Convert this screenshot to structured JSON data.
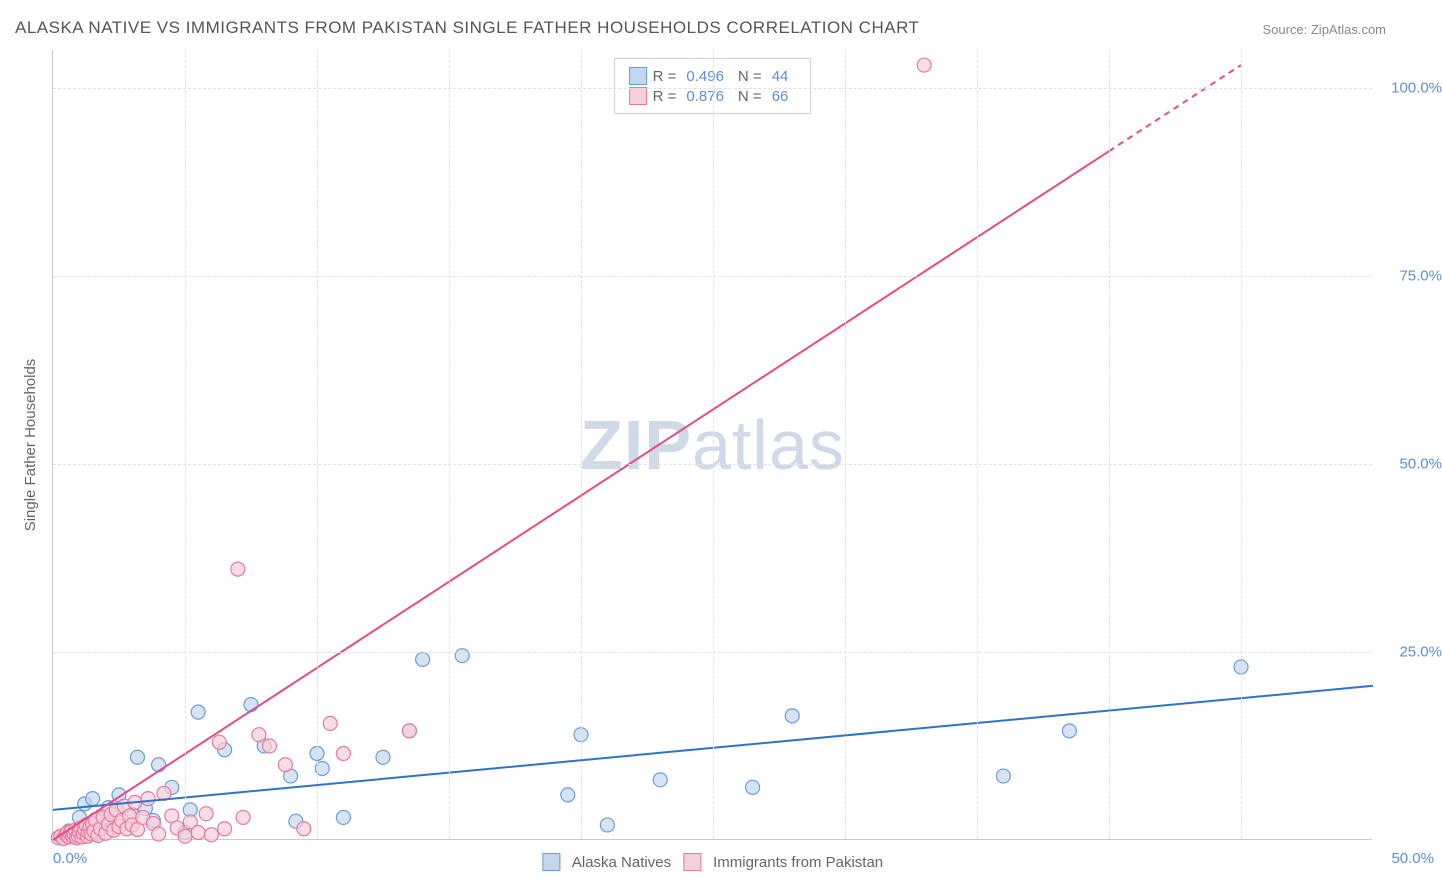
{
  "title": "ALASKA NATIVE VS IMMIGRANTS FROM PAKISTAN SINGLE FATHER HOUSEHOLDS CORRELATION CHART",
  "source": "Source: ZipAtlas.com",
  "y_axis_label": "Single Father Households",
  "watermark_bold": "ZIP",
  "watermark_rest": "atlas",
  "chart": {
    "type": "scatter",
    "xlim": [
      0,
      50
    ],
    "ylim": [
      0,
      105
    ],
    "x_ticks": [
      0,
      50
    ],
    "x_tick_labels": [
      "0.0%",
      "50.0%"
    ],
    "y_ticks": [
      25,
      50,
      75,
      100
    ],
    "y_tick_labels": [
      "25.0%",
      "50.0%",
      "75.0%",
      "100.0%"
    ],
    "grid_color": "#e0e0e0",
    "axis_color": "#cccccc",
    "tick_label_color": "#5b8fd6",
    "background_color": "#ffffff",
    "marker_radius": 7,
    "marker_stroke_width": 1.2,
    "trend_line_width": 2,
    "series": [
      {
        "name": "Alaska Natives",
        "fill_color": "#c3d7f0",
        "stroke_color": "#6a9ed8",
        "line_color": "#2f73c9",
        "R": "0.496",
        "N": "44",
        "trend": {
          "x1": 0,
          "y1": 4.0,
          "x2": 50,
          "y2": 20.5,
          "dash_from": 50
        },
        "points": [
          [
            0.4,
            0.6
          ],
          [
            0.6,
            1.2
          ],
          [
            0.8,
            0.4
          ],
          [
            1.0,
            3.0
          ],
          [
            1.2,
            4.8
          ],
          [
            1.3,
            1.0
          ],
          [
            1.4,
            2.1
          ],
          [
            1.5,
            5.5
          ],
          [
            1.6,
            0.8
          ],
          [
            1.8,
            2.4
          ],
          [
            2.0,
            3.0
          ],
          [
            2.1,
            4.3
          ],
          [
            2.2,
            1.5
          ],
          [
            2.5,
            6.0
          ],
          [
            3.0,
            3.4
          ],
          [
            3.2,
            11.0
          ],
          [
            3.5,
            4.2
          ],
          [
            3.8,
            2.6
          ],
          [
            4.0,
            10.0
          ],
          [
            4.5,
            7.0
          ],
          [
            5.0,
            1.0
          ],
          [
            5.2,
            4.0
          ],
          [
            5.5,
            17.0
          ],
          [
            6.5,
            12.0
          ],
          [
            7.5,
            18.0
          ],
          [
            8.0,
            12.5
          ],
          [
            9.0,
            8.5
          ],
          [
            9.2,
            2.5
          ],
          [
            10.0,
            11.5
          ],
          [
            10.2,
            9.5
          ],
          [
            11.0,
            3.0
          ],
          [
            12.5,
            11.0
          ],
          [
            13.5,
            14.5
          ],
          [
            14.0,
            24.0
          ],
          [
            15.5,
            24.5
          ],
          [
            19.5,
            6.0
          ],
          [
            20.0,
            14.0
          ],
          [
            21.0,
            2.0
          ],
          [
            23.0,
            8.0
          ],
          [
            26.5,
            7.0
          ],
          [
            28.0,
            16.5
          ],
          [
            36.0,
            8.5
          ],
          [
            38.5,
            14.5
          ],
          [
            45.0,
            23.0
          ]
        ]
      },
      {
        "name": "Immigrants from Pakistan",
        "fill_color": "#f6cfda",
        "stroke_color": "#e77aa0",
        "line_color": "#e84b84",
        "R": "0.876",
        "N": "66",
        "trend": {
          "x1": 0,
          "y1": 0.0,
          "x2": 45,
          "y2": 103.0,
          "dash_from": 40
        },
        "points": [
          [
            0.2,
            0.3
          ],
          [
            0.3,
            0.5
          ],
          [
            0.4,
            0.2
          ],
          [
            0.5,
            0.7
          ],
          [
            0.55,
            1.0
          ],
          [
            0.6,
            0.4
          ],
          [
            0.65,
            0.9
          ],
          [
            0.7,
            1.2
          ],
          [
            0.75,
            0.5
          ],
          [
            0.8,
            0.8
          ],
          [
            0.85,
            1.3
          ],
          [
            0.9,
            0.3
          ],
          [
            0.95,
            0.6
          ],
          [
            1.0,
            1.1
          ],
          [
            1.05,
            1.6
          ],
          [
            1.1,
            0.4
          ],
          [
            1.15,
            0.9
          ],
          [
            1.2,
            1.4
          ],
          [
            1.25,
            2.0
          ],
          [
            1.3,
            0.5
          ],
          [
            1.35,
            1.0
          ],
          [
            1.4,
            1.7
          ],
          [
            1.45,
            0.8
          ],
          [
            1.5,
            2.2
          ],
          [
            1.55,
            1.2
          ],
          [
            1.6,
            2.7
          ],
          [
            1.7,
            0.6
          ],
          [
            1.8,
            1.5
          ],
          [
            1.9,
            3.0
          ],
          [
            2.0,
            0.9
          ],
          [
            2.1,
            2.1
          ],
          [
            2.2,
            3.4
          ],
          [
            2.3,
            1.3
          ],
          [
            2.4,
            4.0
          ],
          [
            2.5,
            1.8
          ],
          [
            2.6,
            2.6
          ],
          [
            2.7,
            4.5
          ],
          [
            2.8,
            1.5
          ],
          [
            2.9,
            3.2
          ],
          [
            3.0,
            2.0
          ],
          [
            3.1,
            5.0
          ],
          [
            3.2,
            1.4
          ],
          [
            3.4,
            3.0
          ],
          [
            3.6,
            5.5
          ],
          [
            3.8,
            2.2
          ],
          [
            4.0,
            0.8
          ],
          [
            4.2,
            6.2
          ],
          [
            4.5,
            3.2
          ],
          [
            4.7,
            1.6
          ],
          [
            5.0,
            0.5
          ],
          [
            5.2,
            2.4
          ],
          [
            5.5,
            1.0
          ],
          [
            5.8,
            3.5
          ],
          [
            6.0,
            0.7
          ],
          [
            6.3,
            13.0
          ],
          [
            6.5,
            1.5
          ],
          [
            7.0,
            36.0
          ],
          [
            7.2,
            3.0
          ],
          [
            7.8,
            14.0
          ],
          [
            8.2,
            12.5
          ],
          [
            8.8,
            10.0
          ],
          [
            9.5,
            1.5
          ],
          [
            10.5,
            15.5
          ],
          [
            11.0,
            11.5
          ],
          [
            13.5,
            14.5
          ],
          [
            33.0,
            103.0
          ]
        ]
      }
    ]
  },
  "legend_top_labels": {
    "R": "R =",
    "N": "N ="
  },
  "legend_bottom": [
    {
      "label": "Alaska Natives",
      "fill": "#c3d7f0",
      "stroke": "#6a9ed8"
    },
    {
      "label": "Immigrants from Pakistan",
      "fill": "#f6cfda",
      "stroke": "#e77aa0"
    }
  ]
}
